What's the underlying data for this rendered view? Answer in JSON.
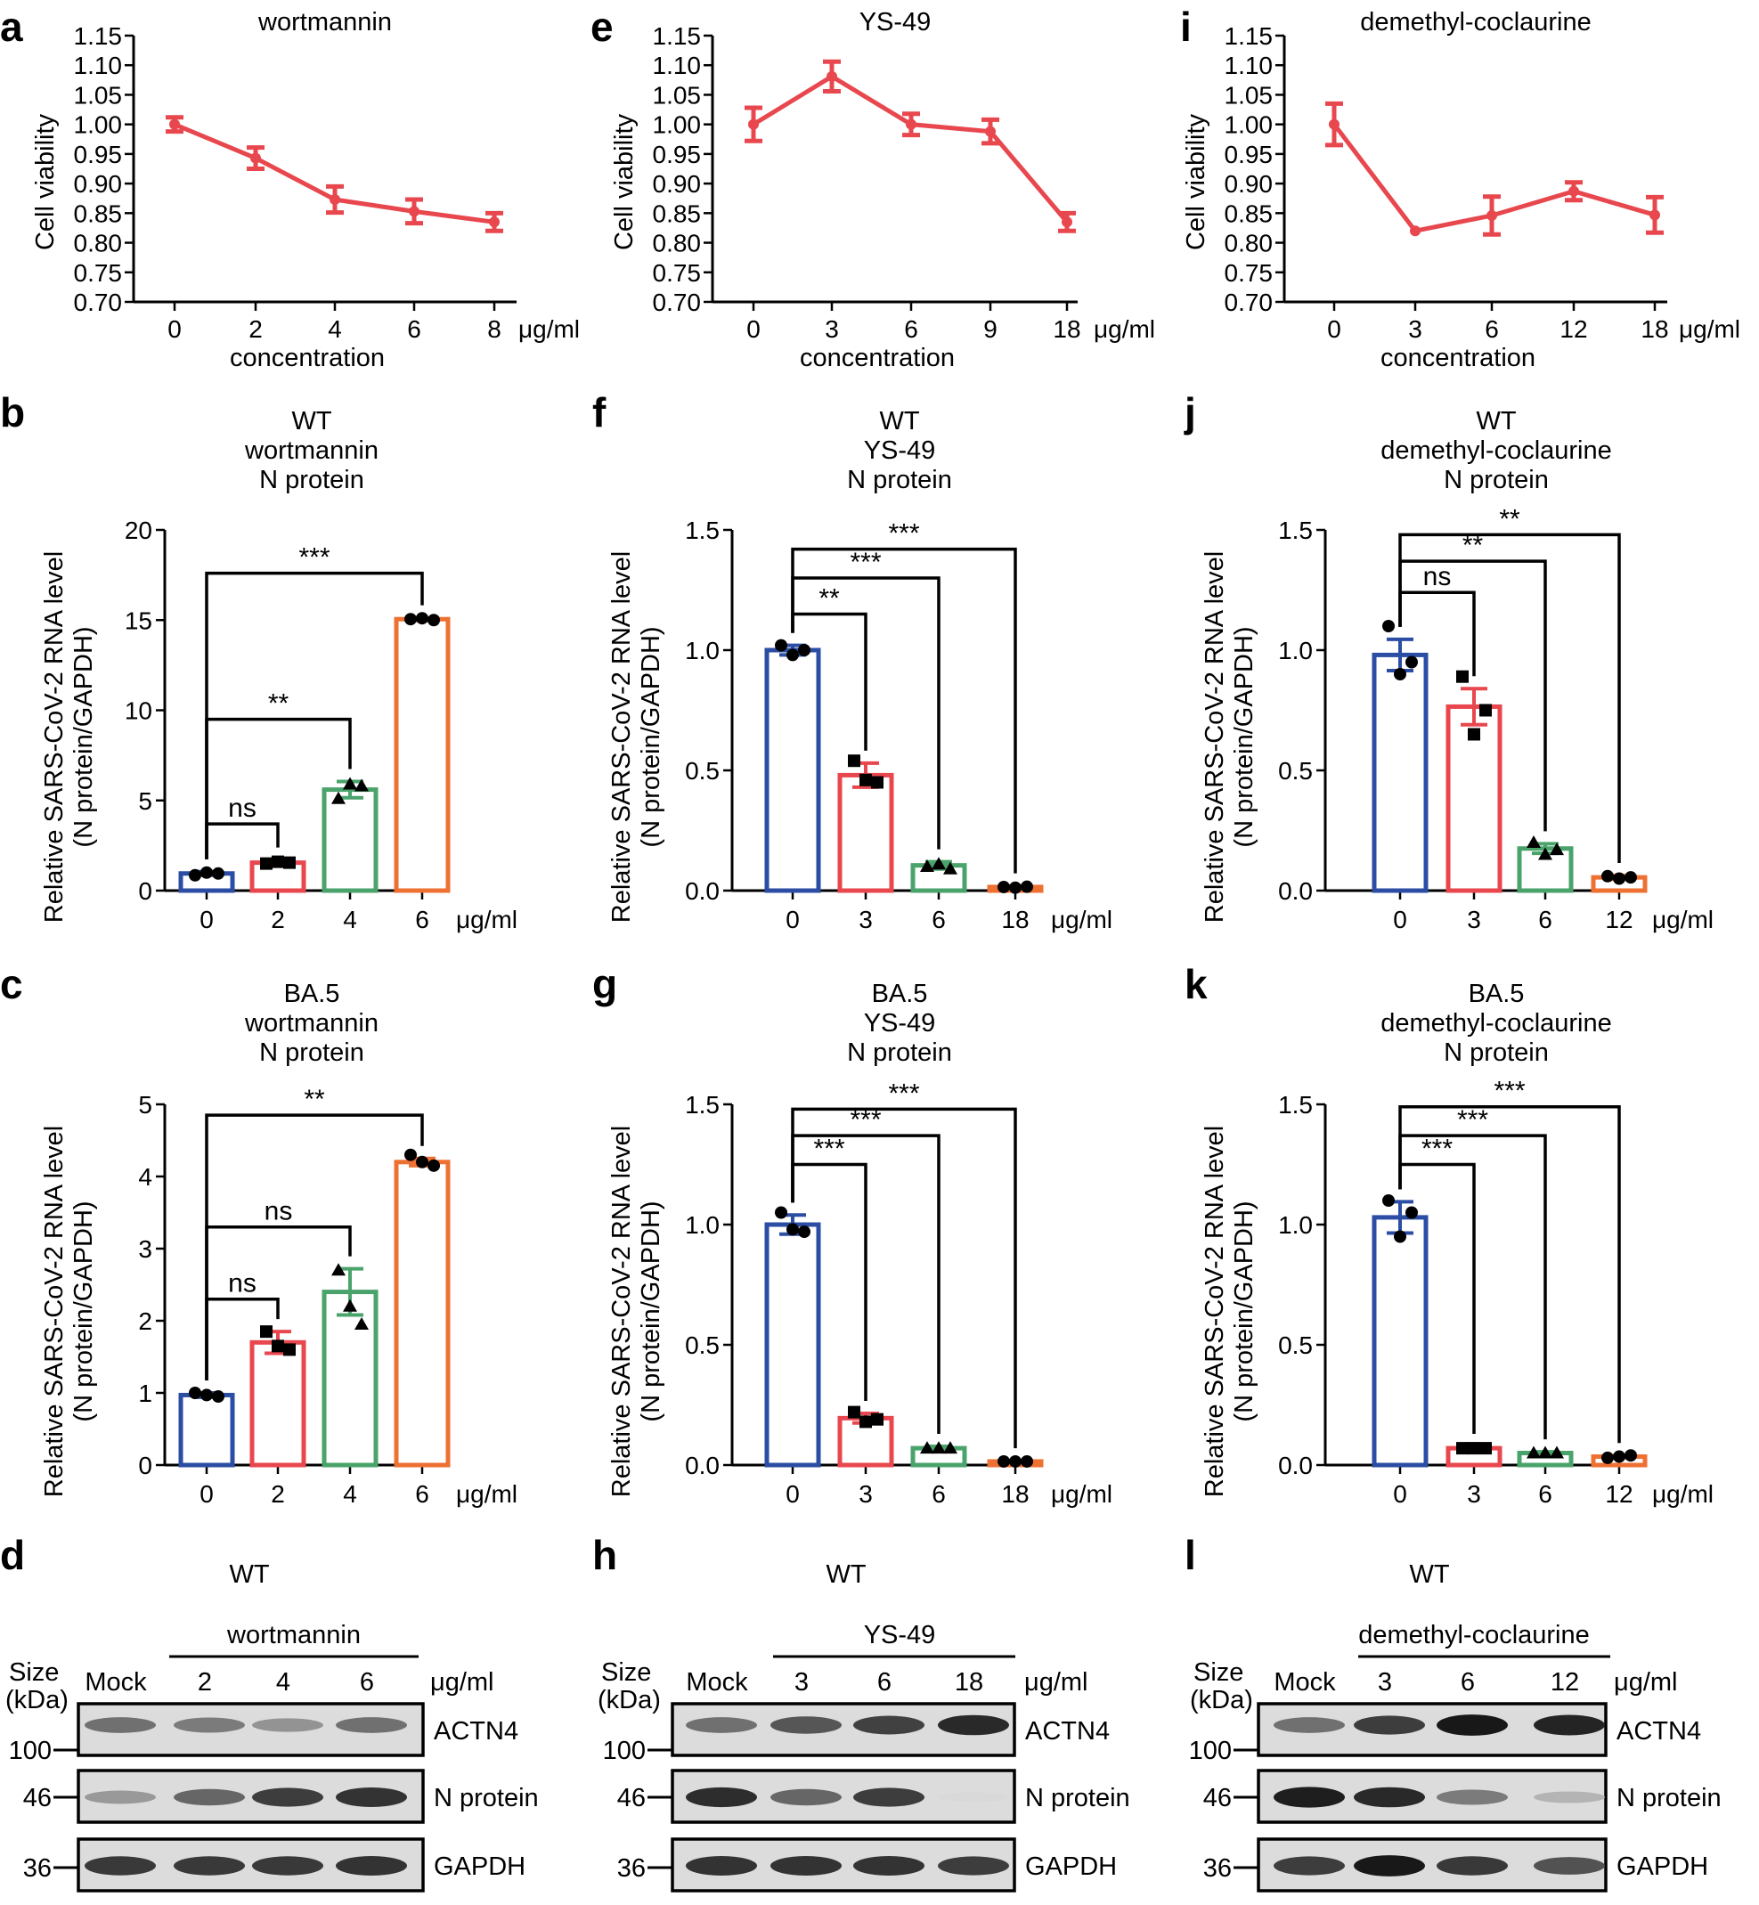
{
  "colors": {
    "red": "#e8474e",
    "blue": "#2b4da3",
    "green": "#4aa36b",
    "orange": "#ee7032",
    "black": "#000000"
  },
  "viability": [
    {
      "panel": "a",
      "title": "wortmannin",
      "ylabel": "Cell viability",
      "xlabel": "concentration",
      "unit": "μg/ml",
      "ylim": [
        0.7,
        1.15
      ],
      "yticks": [
        "0.70",
        "0.75",
        "0.80",
        "0.85",
        "0.90",
        "0.95",
        "1.00",
        "1.05",
        "1.10",
        "1.15"
      ],
      "categories": [
        "0",
        "2",
        "4",
        "6",
        "8"
      ],
      "values": [
        1.0,
        0.943,
        0.873,
        0.853,
        0.835
      ],
      "errors": [
        0.012,
        0.018,
        0.022,
        0.02,
        0.015
      ]
    },
    {
      "panel": "e",
      "title": "YS-49",
      "ylabel": "Cell viability",
      "xlabel": "concentration",
      "unit": "μg/ml",
      "ylim": [
        0.7,
        1.15
      ],
      "yticks": [
        "0.70",
        "0.75",
        "0.80",
        "0.85",
        "0.90",
        "0.95",
        "1.00",
        "1.05",
        "1.10",
        "1.15"
      ],
      "categories": [
        "0",
        "3",
        "6",
        "9",
        "18"
      ],
      "values": [
        1.0,
        1.081,
        1.0,
        0.988,
        0.835
      ],
      "errors": [
        0.028,
        0.025,
        0.018,
        0.02,
        0.015
      ]
    },
    {
      "panel": "i",
      "title": "demethyl-coclaurine",
      "ylabel": "Cell viability",
      "xlabel": "concentration",
      "unit": "μg/ml",
      "ylim": [
        0.7,
        1.15
      ],
      "yticks": [
        "0.70",
        "0.75",
        "0.80",
        "0.85",
        "0.90",
        "0.95",
        "1.00",
        "1.05",
        "1.10",
        "1.15"
      ],
      "categories": [
        "0",
        "3",
        "6",
        "12",
        "18"
      ],
      "values": [
        1.0,
        0.82,
        0.846,
        0.887,
        0.847
      ],
      "errors": [
        0.035,
        0.0,
        0.032,
        0.015,
        0.03
      ]
    }
  ],
  "rna": [
    {
      "panel": "b",
      "title": [
        "WT",
        "wortmannin",
        "N protein"
      ],
      "ylabel": [
        "Relative SARS-CoV-2 RNA level",
        "(N protein/GAPDH)"
      ],
      "unit": "μg/ml",
      "ylim": [
        0,
        20
      ],
      "yticks": [
        "0",
        "5",
        "10",
        "15",
        "20"
      ],
      "categories": [
        "0",
        "2",
        "4",
        "6"
      ],
      "values": [
        0.95,
        1.55,
        5.6,
        15.05
      ],
      "errors": [
        0.1,
        0.15,
        0.45,
        0.08
      ],
      "points": [
        [
          0.85,
          1.0,
          0.95
        ],
        [
          1.5,
          1.6,
          1.55
        ],
        [
          5.1,
          5.9,
          5.8
        ],
        [
          15.05,
          15.1,
          15.0
        ]
      ],
      "markers": [
        "circle",
        "square",
        "triangle",
        "circle"
      ],
      "brackets": [
        {
          "to": 1,
          "label": "ns",
          "y": 3.7
        },
        {
          "to": 2,
          "label": "**",
          "y": 9.5
        },
        {
          "to": 3,
          "label": "***",
          "y": 17.6
        }
      ]
    },
    {
      "panel": "f",
      "title": [
        "WT",
        "YS-49",
        "N protein"
      ],
      "ylabel": [
        "Relative SARS-CoV-2 RNA level",
        "(N protein/GAPDH)"
      ],
      "unit": "μg/ml",
      "ylim": [
        0,
        1.5
      ],
      "yticks": [
        "0.0",
        "0.5",
        "1.0",
        "1.5"
      ],
      "categories": [
        "0",
        "3",
        "6",
        "18"
      ],
      "values": [
        1.0,
        0.48,
        0.105,
        0.015
      ],
      "errors": [
        0.02,
        0.05,
        0.015,
        0.005
      ],
      "points": [
        [
          1.02,
          0.98,
          1.0
        ],
        [
          0.54,
          0.46,
          0.45
        ],
        [
          0.1,
          0.11,
          0.09
        ],
        [
          0.015,
          0.012,
          0.016
        ]
      ],
      "markers": [
        "circle",
        "square",
        "triangle",
        "circle"
      ],
      "brackets": [
        {
          "to": 1,
          "label": "**",
          "y": 1.15
        },
        {
          "to": 2,
          "label": "***",
          "y": 1.3
        },
        {
          "to": 3,
          "label": "***",
          "y": 1.42
        }
      ]
    },
    {
      "panel": "j",
      "title": [
        "WT",
        "demethyl-coclaurine",
        "N protein"
      ],
      "ylabel": [
        "Relative SARS-CoV-2 RNA level",
        "(N protein/GAPDH)"
      ],
      "unit": "μg/ml",
      "ylim": [
        0,
        1.5
      ],
      "yticks": [
        "0.0",
        "0.5",
        "1.0",
        "1.5"
      ],
      "categories": [
        "0",
        "3",
        "6",
        "12"
      ],
      "values": [
        0.98,
        0.765,
        0.175,
        0.055
      ],
      "errors": [
        0.065,
        0.075,
        0.02,
        0.008
      ],
      "points": [
        [
          1.1,
          0.9,
          0.95
        ],
        [
          0.89,
          0.65,
          0.75
        ],
        [
          0.2,
          0.15,
          0.17
        ],
        [
          0.06,
          0.05,
          0.055
        ]
      ],
      "markers": [
        "circle",
        "square",
        "triangle",
        "circle"
      ],
      "brackets": [
        {
          "to": 1,
          "label": "ns",
          "y": 1.24
        },
        {
          "to": 2,
          "label": "**",
          "y": 1.37
        },
        {
          "to": 3,
          "label": "**",
          "y": 1.48
        }
      ]
    },
    {
      "panel": "c",
      "title": [
        "BA.5",
        "wortmannin",
        "N protein"
      ],
      "ylabel": [
        "Relative SARS-CoV-2 RNA level",
        "(N protein/GAPDH)"
      ],
      "unit": "μg/ml",
      "ylim": [
        0,
        5
      ],
      "yticks": [
        "0",
        "1",
        "2",
        "3",
        "4",
        "5"
      ],
      "categories": [
        "0",
        "2",
        "4",
        "6"
      ],
      "values": [
        0.97,
        1.7,
        2.4,
        4.2
      ],
      "errors": [
        0.03,
        0.15,
        0.32,
        0.05
      ],
      "points": [
        [
          1.0,
          0.97,
          0.95
        ],
        [
          1.85,
          1.65,
          1.6
        ],
        [
          2.7,
          2.2,
          1.95
        ],
        [
          4.3,
          4.2,
          4.15
        ]
      ],
      "markers": [
        "circle",
        "square",
        "triangle",
        "circle"
      ],
      "brackets": [
        {
          "to": 1,
          "label": "ns",
          "y": 2.3
        },
        {
          "to": 2,
          "label": "ns",
          "y": 3.3
        },
        {
          "to": 3,
          "label": "**",
          "y": 4.85
        }
      ]
    },
    {
      "panel": "g",
      "title": [
        "BA.5",
        "YS-49",
        "N protein"
      ],
      "ylabel": [
        "Relative SARS-CoV-2 RNA level",
        "(N protein/GAPDH)"
      ],
      "unit": "μg/ml",
      "ylim": [
        0,
        1.5
      ],
      "yticks": [
        "0.0",
        "0.5",
        "1.0",
        "1.5"
      ],
      "categories": [
        "0",
        "3",
        "6",
        "18"
      ],
      "values": [
        1.0,
        0.195,
        0.07,
        0.015
      ],
      "errors": [
        0.04,
        0.02,
        0.008,
        0.003
      ],
      "points": [
        [
          1.05,
          0.98,
          0.97
        ],
        [
          0.22,
          0.18,
          0.19
        ],
        [
          0.07,
          0.07,
          0.07
        ],
        [
          0.015,
          0.015,
          0.015
        ]
      ],
      "markers": [
        "circle",
        "square",
        "triangle",
        "circle"
      ],
      "brackets": [
        {
          "to": 1,
          "label": "***",
          "y": 1.25
        },
        {
          "to": 2,
          "label": "***",
          "y": 1.37
        },
        {
          "to": 3,
          "label": "***",
          "y": 1.48
        }
      ]
    },
    {
      "panel": "k",
      "title": [
        "BA.5",
        "demethyl-coclaurine",
        "N protein"
      ],
      "ylabel": [
        "Relative SARS-CoV-2 RNA level",
        "(N protein/GAPDH)"
      ],
      "unit": "μg/ml",
      "ylim": [
        0,
        1.5
      ],
      "yticks": [
        "0.0",
        "0.5",
        "1.0",
        "1.5"
      ],
      "categories": [
        "0",
        "3",
        "6",
        "12"
      ],
      "values": [
        1.03,
        0.07,
        0.05,
        0.035
      ],
      "errors": [
        0.065,
        0.008,
        0.005,
        0.005
      ],
      "points": [
        [
          1.1,
          0.95,
          1.05
        ],
        [
          0.07,
          0.07,
          0.07
        ],
        [
          0.05,
          0.05,
          0.05
        ],
        [
          0.03,
          0.035,
          0.04
        ]
      ],
      "markers": [
        "circle",
        "square",
        "triangle",
        "circle"
      ],
      "brackets": [
        {
          "to": 1,
          "label": "***",
          "y": 1.25
        },
        {
          "to": 2,
          "label": "***",
          "y": 1.37
        },
        {
          "to": 3,
          "label": "***",
          "y": 1.49
        }
      ]
    }
  ],
  "western": [
    {
      "panel": "d",
      "title": "WT",
      "drug": "wortmannin",
      "size_label": [
        "Size",
        "(kDa)"
      ],
      "lanes": [
        "Mock",
        "2",
        "4",
        "6"
      ],
      "unit": "μg/ml",
      "markers": [
        "100",
        "46",
        "36"
      ],
      "bands": [
        "ACTN4",
        "N protein",
        "GAPDH"
      ],
      "intensity": [
        [
          0.55,
          0.5,
          0.38,
          0.55
        ],
        [
          0.35,
          0.6,
          0.8,
          0.85
        ],
        [
          0.82,
          0.82,
          0.82,
          0.85
        ]
      ]
    },
    {
      "panel": "h",
      "title": "WT",
      "drug": "YS-49",
      "size_label": [
        "Size",
        "(kDa)"
      ],
      "lanes": [
        "Mock",
        "3",
        "6",
        "18"
      ],
      "unit": "μg/ml",
      "markers": [
        "100",
        "46",
        "36"
      ],
      "bands": [
        "ACTN4",
        "N protein",
        "GAPDH"
      ],
      "intensity": [
        [
          0.55,
          0.68,
          0.78,
          0.9
        ],
        [
          0.88,
          0.6,
          0.8,
          0.04
        ],
        [
          0.85,
          0.85,
          0.85,
          0.8
        ]
      ]
    },
    {
      "panel": "l",
      "title": "WT",
      "drug": "demethyl-coclaurine",
      "size_label": [
        "Size",
        "(kDa)"
      ],
      "lanes": [
        "Mock",
        "3",
        "6",
        "12"
      ],
      "unit": "μg/ml",
      "markers": [
        "100",
        "46",
        "36"
      ],
      "bands": [
        "ACTN4",
        "N protein",
        "GAPDH"
      ],
      "intensity": [
        [
          0.55,
          0.8,
          0.98,
          0.92
        ],
        [
          0.95,
          0.9,
          0.5,
          0.22
        ],
        [
          0.8,
          0.98,
          0.82,
          0.7
        ]
      ]
    }
  ]
}
